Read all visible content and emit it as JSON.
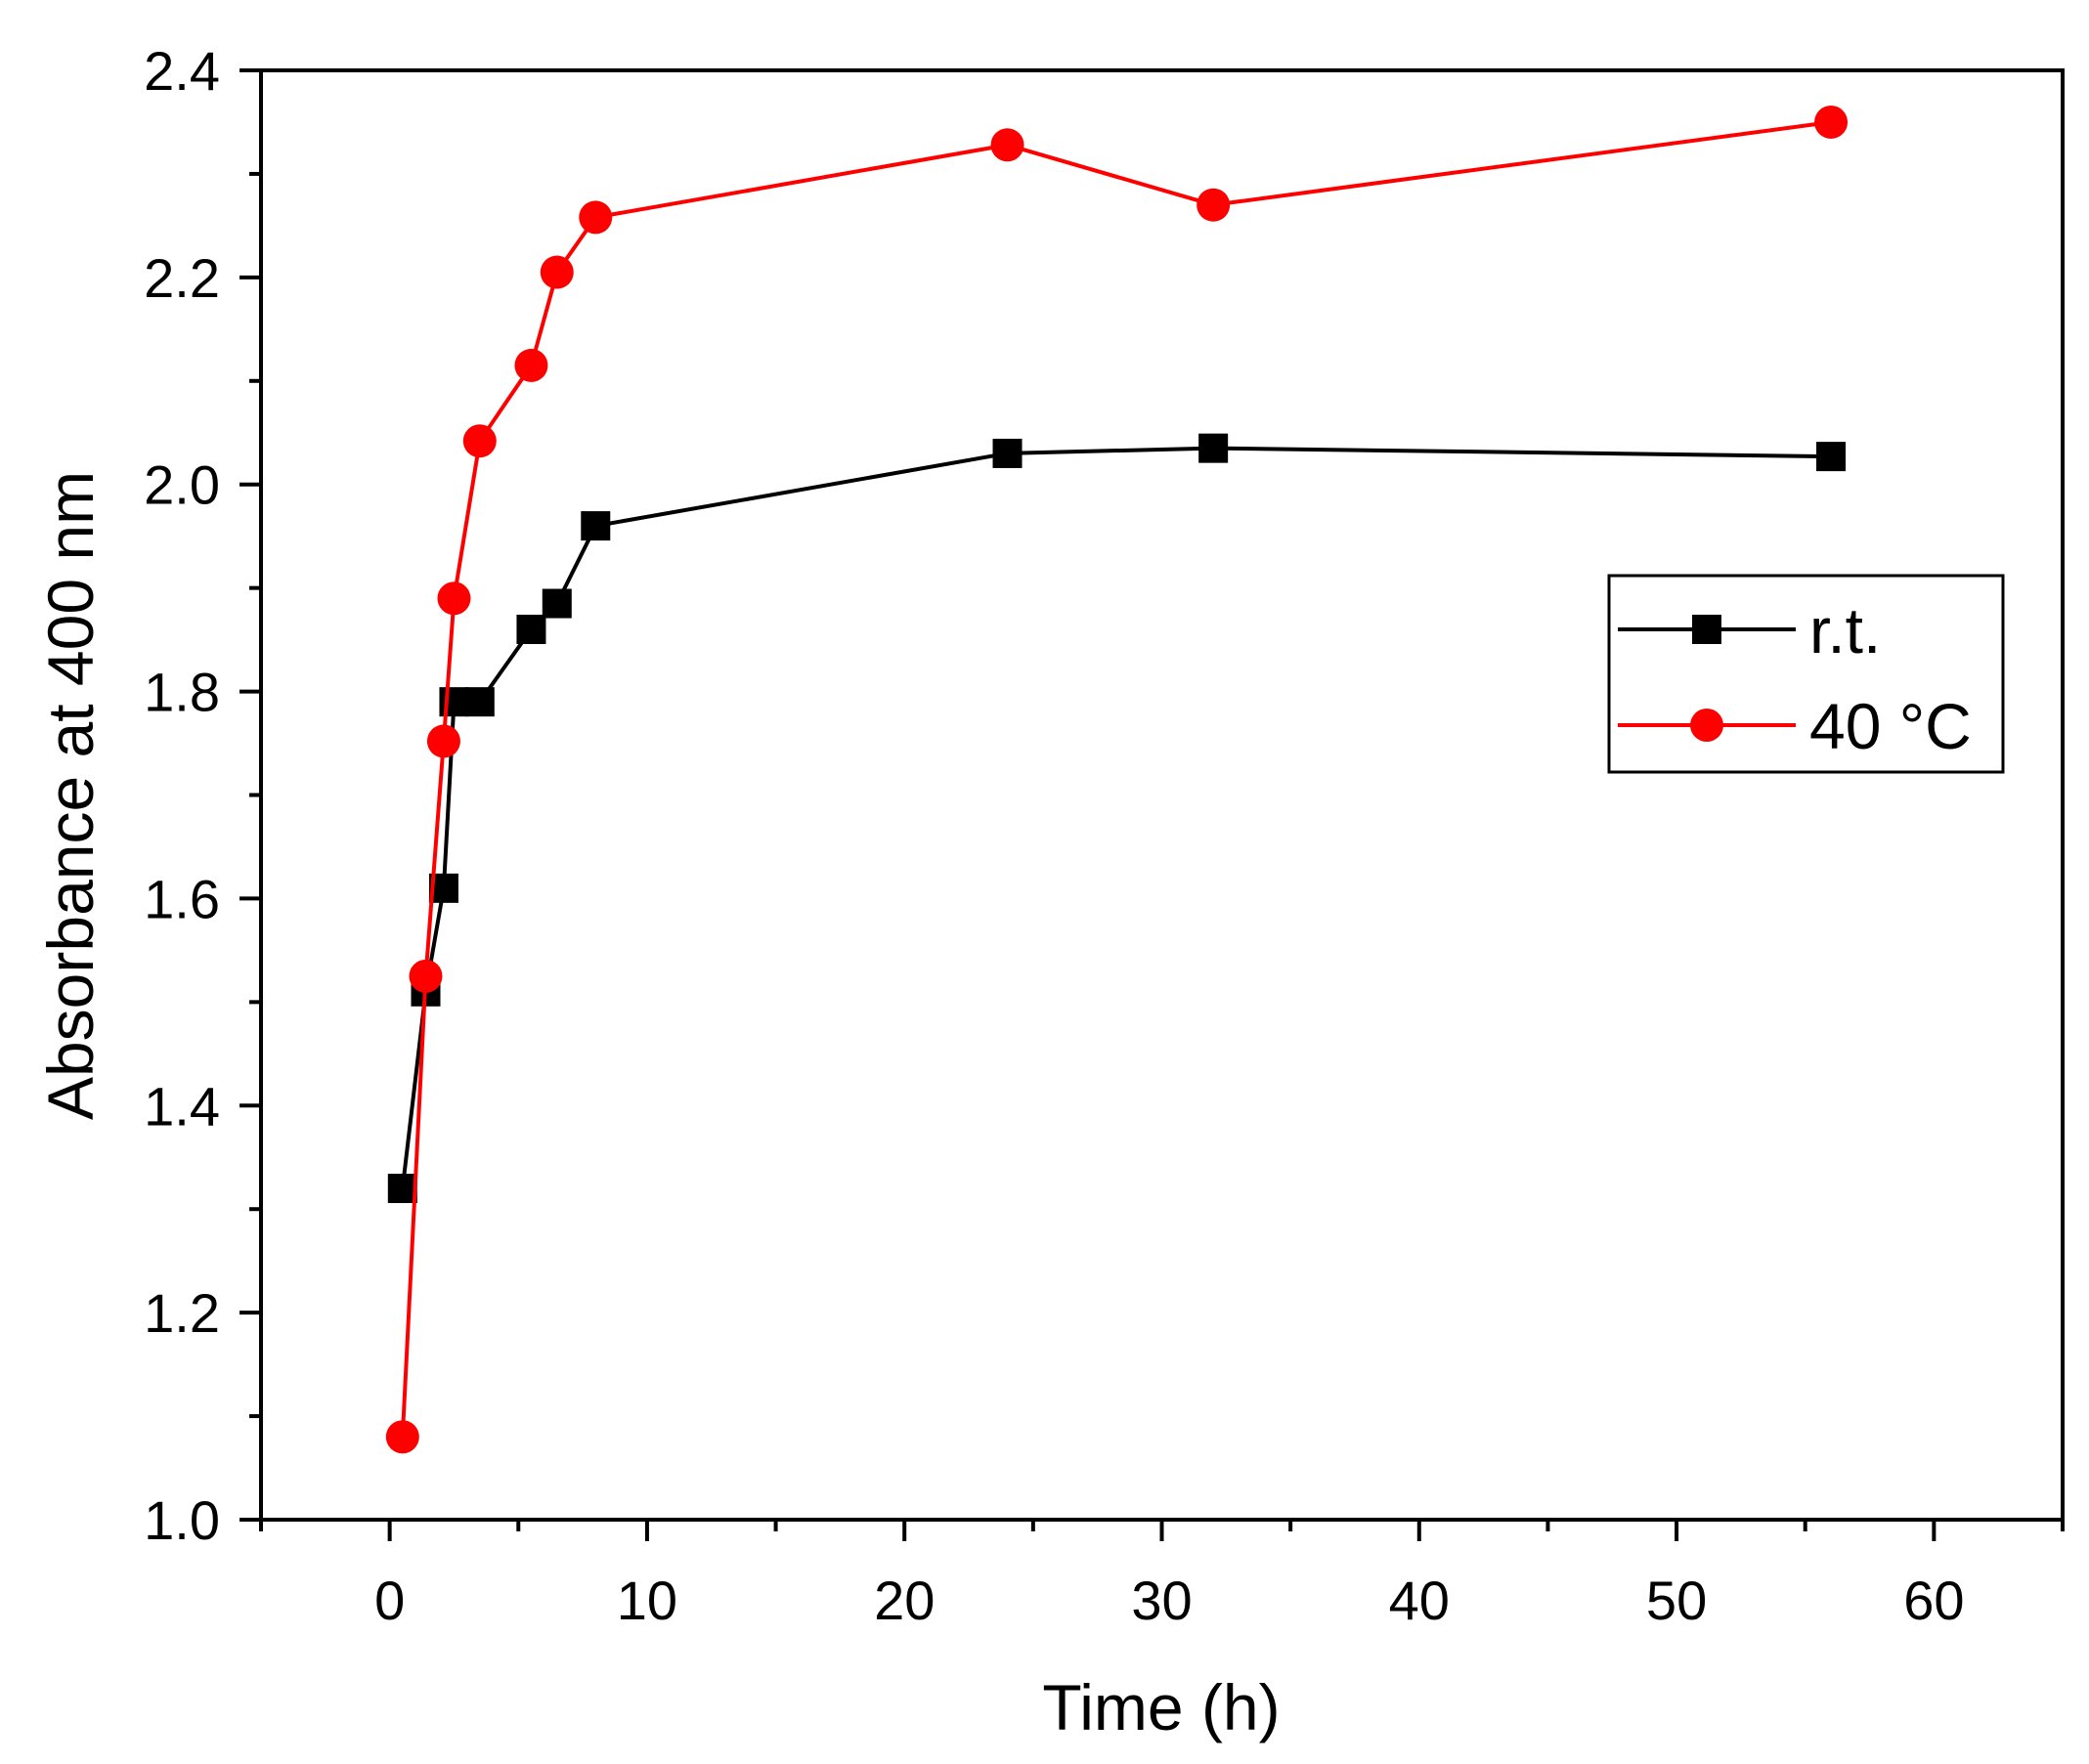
{
  "chart_data": {
    "type": "line",
    "title": "",
    "xlabel": "Time (h)",
    "ylabel": "Absorbance at 400 nm",
    "xlim": [
      -5,
      65
    ],
    "ylim": [
      1.0,
      2.4
    ],
    "x_ticks": [
      0,
      10,
      20,
      30,
      40,
      50,
      60
    ],
    "y_ticks": [
      1.0,
      1.2,
      1.4,
      1.6,
      1.8,
      2.0,
      2.2,
      2.4
    ],
    "x_tick_labels": [
      "0",
      "10",
      "20",
      "30",
      "40",
      "50",
      "60"
    ],
    "y_tick_labels": [
      "1.0",
      "1.2",
      "1.4",
      "1.6",
      "1.8",
      "2.0",
      "2.2",
      "2.4"
    ],
    "grid": false,
    "legend_position": "right",
    "series": [
      {
        "name": "r.t.",
        "color": "#000000",
        "marker": "square",
        "x": [
          0.5,
          1.4,
          2.1,
          2.5,
          3.5,
          5.5,
          6.5,
          8.0,
          24.0,
          32.0,
          56.0
        ],
        "y": [
          1.32,
          1.51,
          1.61,
          1.79,
          1.79,
          1.86,
          1.885,
          1.96,
          2.03,
          2.035,
          2.027
        ]
      },
      {
        "name": "40 °C",
        "color": "#ff0000",
        "marker": "circle",
        "x": [
          0.5,
          1.4,
          2.1,
          2.5,
          3.5,
          5.5,
          6.5,
          8.0,
          24.0,
          32.0,
          56.0
        ],
        "y": [
          1.08,
          1.525,
          1.752,
          1.89,
          2.042,
          2.115,
          2.205,
          2.258,
          2.328,
          2.27,
          2.35
        ]
      }
    ]
  }
}
